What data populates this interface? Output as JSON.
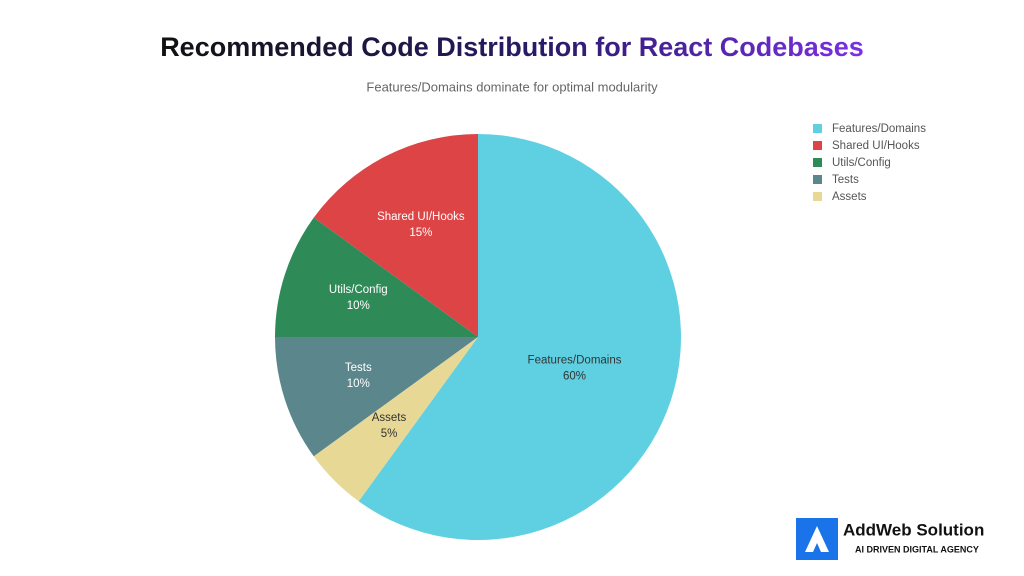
{
  "chart_data": {
    "type": "pie",
    "title": "Recommended Code Distribution for React Codebases",
    "subtitle": "Features/Domains dominate for optimal modularity",
    "categories": [
      "Features/Domains",
      "Shared UI/Hooks",
      "Utils/Config",
      "Tests",
      "Assets"
    ],
    "values": [
      60,
      15,
      10,
      10,
      5
    ],
    "value_labels": [
      "60%",
      "15%",
      "10%",
      "10%",
      "5%"
    ],
    "colors": [
      "#5fd0e2",
      "#dc4446",
      "#2e8a57",
      "#5b868c",
      "#e8d896"
    ],
    "legend": "top-right"
  },
  "logo": {
    "name": "AddWeb Solution",
    "tagline": "AI DRIVEN DIGITAL AGENCY"
  }
}
